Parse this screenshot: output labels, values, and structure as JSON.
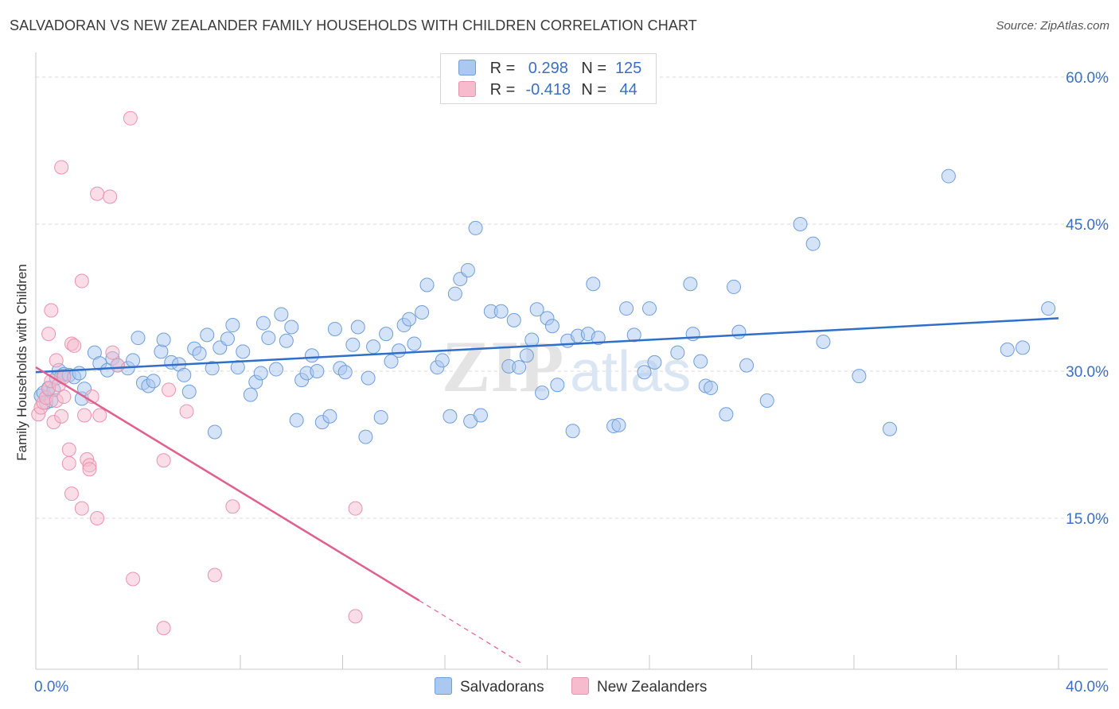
{
  "title": "SALVADORAN VS NEW ZEALANDER FAMILY HOUSEHOLDS WITH CHILDREN CORRELATION CHART",
  "source": "Source: ZipAtlas.com",
  "legend_top": [
    {
      "r_label": "R =",
      "r_value": "0.298",
      "n_label": "N =",
      "n_value": "125"
    },
    {
      "r_label": "R =",
      "r_value": "-0.418",
      "n_label": "N =",
      "n_value": "44"
    }
  ],
  "colors": {
    "blue_fill": "#aac8f0",
    "blue_stroke": "#6f9ed8",
    "blue_line": "#2f6fc9",
    "pink_fill": "#f6bccd",
    "pink_stroke": "#e893ae",
    "pink_line": "#e0608f",
    "grid": "#d9d9d9",
    "tick_text": "#3b6fc4",
    "axis": "#c8c8c8"
  },
  "chart_data": {
    "type": "scatter",
    "title": "SALVADORAN VS NEW ZEALANDER FAMILY HOUSEHOLDS WITH CHILDREN CORRELATION CHART",
    "xlabel": "",
    "ylabel": "Family Households with Children",
    "xlim": [
      0,
      40
    ],
    "ylim": [
      0,
      63
    ],
    "x_tick_labels": [
      "0.0%",
      "40.0%"
    ],
    "y_ticks": [
      15,
      30,
      45,
      60
    ],
    "y_tick_labels": [
      "15.0%",
      "30.0%",
      "45.0%",
      "60.0%"
    ],
    "grid": true,
    "legend_position": "top-center",
    "watermark": "ZIPatlas",
    "series": [
      {
        "name": "Salvadorans",
        "r": 0.298,
        "n": 125,
        "trend": {
          "x": [
            0,
            40
          ],
          "y": [
            29.9,
            35.4
          ]
        },
        "points": [
          [
            0.2,
            27.5
          ],
          [
            0.3,
            27.8
          ],
          [
            0.4,
            26.8
          ],
          [
            0.5,
            28.3
          ],
          [
            0.6,
            27.0
          ],
          [
            0.7,
            28.1
          ],
          [
            0.8,
            29.3
          ],
          [
            0.9,
            30.1
          ],
          [
            1.0,
            29.5
          ],
          [
            1.1,
            29.7
          ],
          [
            1.3,
            29.6
          ],
          [
            1.5,
            29.4
          ],
          [
            1.7,
            29.8
          ],
          [
            1.8,
            27.2
          ],
          [
            1.9,
            28.2
          ],
          [
            2.3,
            31.9
          ],
          [
            2.5,
            30.8
          ],
          [
            2.8,
            30.1
          ],
          [
            3.0,
            31.3
          ],
          [
            3.2,
            30.6
          ],
          [
            3.6,
            30.3
          ],
          [
            3.8,
            31.1
          ],
          [
            4.0,
            33.4
          ],
          [
            4.2,
            28.8
          ],
          [
            4.4,
            28.5
          ],
          [
            4.6,
            29.0
          ],
          [
            4.9,
            32.0
          ],
          [
            5.0,
            33.2
          ],
          [
            5.3,
            30.9
          ],
          [
            5.6,
            30.7
          ],
          [
            5.8,
            29.6
          ],
          [
            6.0,
            27.9
          ],
          [
            6.2,
            32.3
          ],
          [
            6.4,
            31.8
          ],
          [
            6.7,
            33.7
          ],
          [
            6.9,
            30.3
          ],
          [
            7.0,
            23.8
          ],
          [
            7.2,
            32.4
          ],
          [
            7.5,
            33.3
          ],
          [
            7.7,
            34.7
          ],
          [
            7.9,
            30.4
          ],
          [
            8.1,
            32.0
          ],
          [
            8.4,
            27.6
          ],
          [
            8.6,
            28.9
          ],
          [
            8.8,
            29.8
          ],
          [
            8.9,
            34.9
          ],
          [
            9.1,
            33.4
          ],
          [
            9.4,
            30.2
          ],
          [
            9.6,
            35.8
          ],
          [
            9.8,
            33.1
          ],
          [
            10.0,
            34.5
          ],
          [
            10.2,
            25.0
          ],
          [
            10.4,
            29.1
          ],
          [
            10.6,
            29.8
          ],
          [
            10.8,
            31.6
          ],
          [
            11.0,
            30.0
          ],
          [
            11.2,
            24.8
          ],
          [
            11.5,
            25.4
          ],
          [
            11.7,
            34.3
          ],
          [
            11.9,
            30.3
          ],
          [
            12.1,
            29.9
          ],
          [
            12.4,
            32.7
          ],
          [
            12.6,
            34.5
          ],
          [
            12.9,
            23.3
          ],
          [
            13.0,
            29.3
          ],
          [
            13.2,
            32.5
          ],
          [
            13.5,
            25.3
          ],
          [
            13.7,
            33.8
          ],
          [
            13.9,
            31.0
          ],
          [
            14.2,
            32.1
          ],
          [
            14.4,
            34.7
          ],
          [
            14.6,
            35.3
          ],
          [
            14.8,
            32.8
          ],
          [
            15.1,
            36.0
          ],
          [
            15.3,
            38.8
          ],
          [
            15.7,
            30.4
          ],
          [
            15.9,
            31.1
          ],
          [
            16.2,
            25.4
          ],
          [
            16.4,
            37.9
          ],
          [
            16.6,
            39.4
          ],
          [
            16.9,
            40.3
          ],
          [
            17.0,
            24.9
          ],
          [
            17.2,
            44.6
          ],
          [
            17.4,
            25.5
          ],
          [
            17.8,
            36.1
          ],
          [
            18.2,
            36.1
          ],
          [
            18.5,
            30.5
          ],
          [
            18.7,
            35.2
          ],
          [
            18.9,
            30.4
          ],
          [
            19.2,
            31.6
          ],
          [
            19.4,
            33.2
          ],
          [
            19.6,
            36.3
          ],
          [
            19.8,
            27.8
          ],
          [
            20.0,
            35.4
          ],
          [
            20.2,
            34.6
          ],
          [
            20.4,
            28.6
          ],
          [
            20.8,
            33.1
          ],
          [
            21.0,
            23.9
          ],
          [
            21.2,
            33.6
          ],
          [
            21.6,
            33.8
          ],
          [
            21.8,
            38.9
          ],
          [
            22.0,
            33.4
          ],
          [
            22.6,
            24.4
          ],
          [
            22.8,
            24.5
          ],
          [
            23.1,
            36.4
          ],
          [
            23.4,
            33.7
          ],
          [
            23.8,
            29.9
          ],
          [
            24.0,
            36.4
          ],
          [
            24.2,
            30.9
          ],
          [
            25.1,
            31.9
          ],
          [
            25.6,
            38.9
          ],
          [
            25.7,
            33.8
          ],
          [
            26.0,
            31.0
          ],
          [
            26.2,
            28.5
          ],
          [
            26.4,
            28.3
          ],
          [
            27.0,
            25.6
          ],
          [
            27.3,
            38.6
          ],
          [
            27.5,
            34.0
          ],
          [
            27.8,
            30.6
          ],
          [
            28.6,
            27.0
          ],
          [
            29.9,
            45.0
          ],
          [
            30.4,
            43.0
          ],
          [
            30.8,
            33.0
          ],
          [
            32.2,
            29.5
          ],
          [
            33.4,
            24.1
          ],
          [
            35.7,
            49.9
          ],
          [
            38.0,
            32.2
          ],
          [
            38.6,
            32.4
          ],
          [
            39.6,
            36.4
          ]
        ]
      },
      {
        "name": "New Zealanders",
        "r": -0.418,
        "n": 44,
        "trend": {
          "x": [
            0,
            15
          ],
          "y": [
            30.4,
            6.6
          ]
        },
        "trend_dashed": {
          "x": [
            15,
            19
          ],
          "y": [
            6.6,
            0.2
          ]
        },
        "points": [
          [
            0.1,
            25.6
          ],
          [
            0.2,
            26.3
          ],
          [
            0.3,
            26.8
          ],
          [
            0.4,
            27.3
          ],
          [
            0.5,
            33.8
          ],
          [
            0.5,
            28.2
          ],
          [
            0.6,
            36.2
          ],
          [
            0.6,
            29.0
          ],
          [
            0.7,
            24.8
          ],
          [
            0.8,
            27.0
          ],
          [
            0.8,
            31.1
          ],
          [
            0.9,
            28.6
          ],
          [
            1.0,
            25.4
          ],
          [
            1.0,
            50.8
          ],
          [
            1.1,
            29.4
          ],
          [
            1.1,
            27.4
          ],
          [
            1.3,
            20.6
          ],
          [
            1.3,
            22.0
          ],
          [
            1.4,
            17.5
          ],
          [
            1.4,
            32.8
          ],
          [
            1.5,
            32.6
          ],
          [
            1.8,
            16.0
          ],
          [
            1.8,
            39.2
          ],
          [
            1.9,
            25.5
          ],
          [
            2.0,
            21.0
          ],
          [
            2.1,
            20.4
          ],
          [
            2.1,
            20.0
          ],
          [
            2.2,
            27.4
          ],
          [
            2.4,
            15.0
          ],
          [
            2.4,
            48.1
          ],
          [
            2.5,
            25.5
          ],
          [
            2.9,
            47.8
          ],
          [
            3.0,
            31.9
          ],
          [
            3.2,
            30.6
          ],
          [
            3.7,
            55.8
          ],
          [
            3.8,
            8.8
          ],
          [
            5.0,
            20.9
          ],
          [
            5.0,
            3.8
          ],
          [
            5.2,
            28.1
          ],
          [
            5.9,
            25.9
          ],
          [
            7.0,
            9.2
          ],
          [
            7.7,
            16.2
          ],
          [
            12.5,
            16.0
          ],
          [
            12.5,
            5.0
          ]
        ]
      }
    ]
  },
  "axes": {
    "x_left_label": "0.0%",
    "x_right_label": "40.0%"
  },
  "bottom_legend": [
    {
      "label": "Salvadorans"
    },
    {
      "label": "New Zealanders"
    }
  ]
}
